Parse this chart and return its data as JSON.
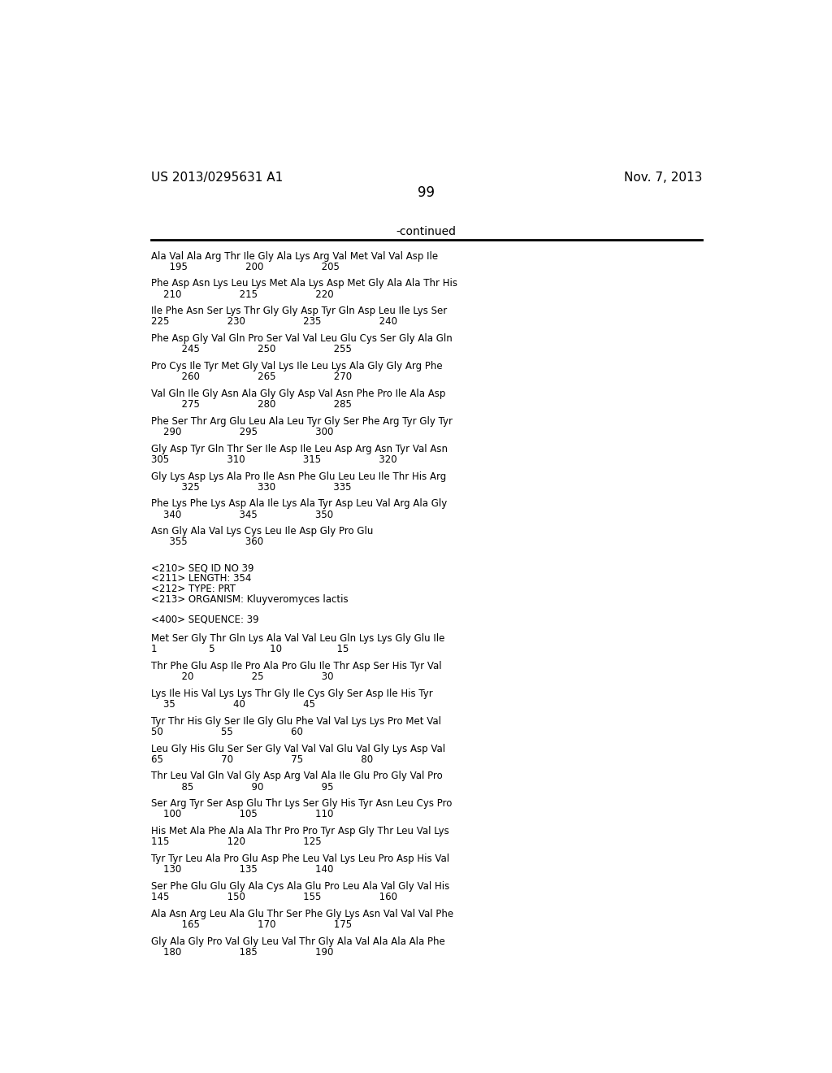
{
  "header_left": "US 2013/0295631 A1",
  "header_right": "Nov. 7, 2013",
  "page_number": "99",
  "continued_text": "-continued",
  "background_color": "#ffffff",
  "text_color": "#000000",
  "lines": [
    {
      "indent": "seq",
      "seq": "Ala Val Ala Arg Thr Ile Gly Ala Lys Arg Val Met Val Val Asp Ile",
      "num": "      195                   200                   205"
    },
    {
      "indent": "seq",
      "seq": "Phe Asp Asn Lys Leu Lys Met Ala Lys Asp Met Gly Ala Ala Thr His",
      "num": "    210                   215                   220"
    },
    {
      "indent": "seq",
      "seq": "Ile Phe Asn Ser Lys Thr Gly Gly Asp Tyr Gln Asp Leu Ile Lys Ser",
      "num": "225                   230                   235                   240"
    },
    {
      "indent": "seq",
      "seq": "Phe Asp Gly Val Gln Pro Ser Val Val Leu Glu Cys Ser Gly Ala Gln",
      "num": "          245                   250                   255"
    },
    {
      "indent": "seq",
      "seq": "Pro Cys Ile Tyr Met Gly Val Lys Ile Leu Lys Ala Gly Gly Arg Phe",
      "num": "          260                   265                   270"
    },
    {
      "indent": "seq",
      "seq": "Val Gln Ile Gly Asn Ala Gly Gly Asp Val Asn Phe Pro Ile Ala Asp",
      "num": "          275                   280                   285"
    },
    {
      "indent": "seq",
      "seq": "Phe Ser Thr Arg Glu Leu Ala Leu Tyr Gly Ser Phe Arg Tyr Gly Tyr",
      "num": "    290                   295                   300"
    },
    {
      "indent": "seq",
      "seq": "Gly Asp Tyr Gln Thr Ser Ile Asp Ile Leu Asp Arg Asn Tyr Val Asn",
      "num": "305                   310                   315                   320"
    },
    {
      "indent": "seq",
      "seq": "Gly Lys Asp Lys Ala Pro Ile Asn Phe Glu Leu Leu Ile Thr His Arg",
      "num": "          325                   330                   335"
    },
    {
      "indent": "seq",
      "seq": "Phe Lys Phe Lys Asp Ala Ile Lys Ala Tyr Asp Leu Val Arg Ala Gly",
      "num": "    340                   345                   350"
    },
    {
      "indent": "seq",
      "seq": "Asn Gly Ala Val Lys Cys Leu Ile Asp Gly Pro Glu",
      "num": "      355                   360"
    },
    {
      "indent": "blank"
    },
    {
      "indent": "meta",
      "text": "<210> SEQ ID NO 39"
    },
    {
      "indent": "meta",
      "text": "<211> LENGTH: 354"
    },
    {
      "indent": "meta",
      "text": "<212> TYPE: PRT"
    },
    {
      "indent": "meta",
      "text": "<213> ORGANISM: Kluyveromyces lactis"
    },
    {
      "indent": "blank"
    },
    {
      "indent": "meta",
      "text": "<400> SEQUENCE: 39"
    },
    {
      "indent": "blank"
    },
    {
      "indent": "seq",
      "seq": "Met Ser Gly Thr Gln Lys Ala Val Val Leu Gln Lys Lys Gly Glu Ile",
      "num": "1                 5                  10                  15"
    },
    {
      "indent": "seq",
      "seq": "Thr Phe Glu Asp Ile Pro Ala Pro Glu Ile Thr Asp Ser His Tyr Val",
      "num": "          20                   25                   30"
    },
    {
      "indent": "seq",
      "seq": "Lys Ile His Val Lys Lys Thr Gly Ile Cys Gly Ser Asp Ile His Tyr",
      "num": "    35                   40                   45"
    },
    {
      "indent": "seq",
      "seq": "Tyr Thr His Gly Ser Ile Gly Glu Phe Val Val Lys Lys Pro Met Val",
      "num": "50                   55                   60"
    },
    {
      "indent": "seq",
      "seq": "Leu Gly His Glu Ser Ser Gly Val Val Val Glu Val Gly Lys Asp Val",
      "num": "65                   70                   75                   80"
    },
    {
      "indent": "seq",
      "seq": "Thr Leu Val Gln Val Gly Asp Arg Val Ala Ile Glu Pro Gly Val Pro",
      "num": "          85                   90                   95"
    },
    {
      "indent": "seq",
      "seq": "Ser Arg Tyr Ser Asp Glu Thr Lys Ser Gly His Tyr Asn Leu Cys Pro",
      "num": "    100                   105                   110"
    },
    {
      "indent": "seq",
      "seq": "His Met Ala Phe Ala Ala Thr Pro Pro Tyr Asp Gly Thr Leu Val Lys",
      "num": "115                   120                   125"
    },
    {
      "indent": "seq",
      "seq": "Tyr Tyr Leu Ala Pro Glu Asp Phe Leu Val Lys Leu Pro Asp His Val",
      "num": "    130                   135                   140"
    },
    {
      "indent": "seq",
      "seq": "Ser Phe Glu Glu Gly Ala Cys Ala Glu Pro Leu Ala Val Gly Val His",
      "num": "145                   150                   155                   160"
    },
    {
      "indent": "seq",
      "seq": "Ala Asn Arg Leu Ala Glu Thr Ser Phe Gly Lys Asn Val Val Val Phe",
      "num": "          165                   170                   175"
    },
    {
      "indent": "seq",
      "seq": "Gly Ala Gly Pro Val Gly Leu Val Thr Gly Ala Val Ala Ala Ala Phe",
      "num": "    180                   185                   190"
    }
  ]
}
